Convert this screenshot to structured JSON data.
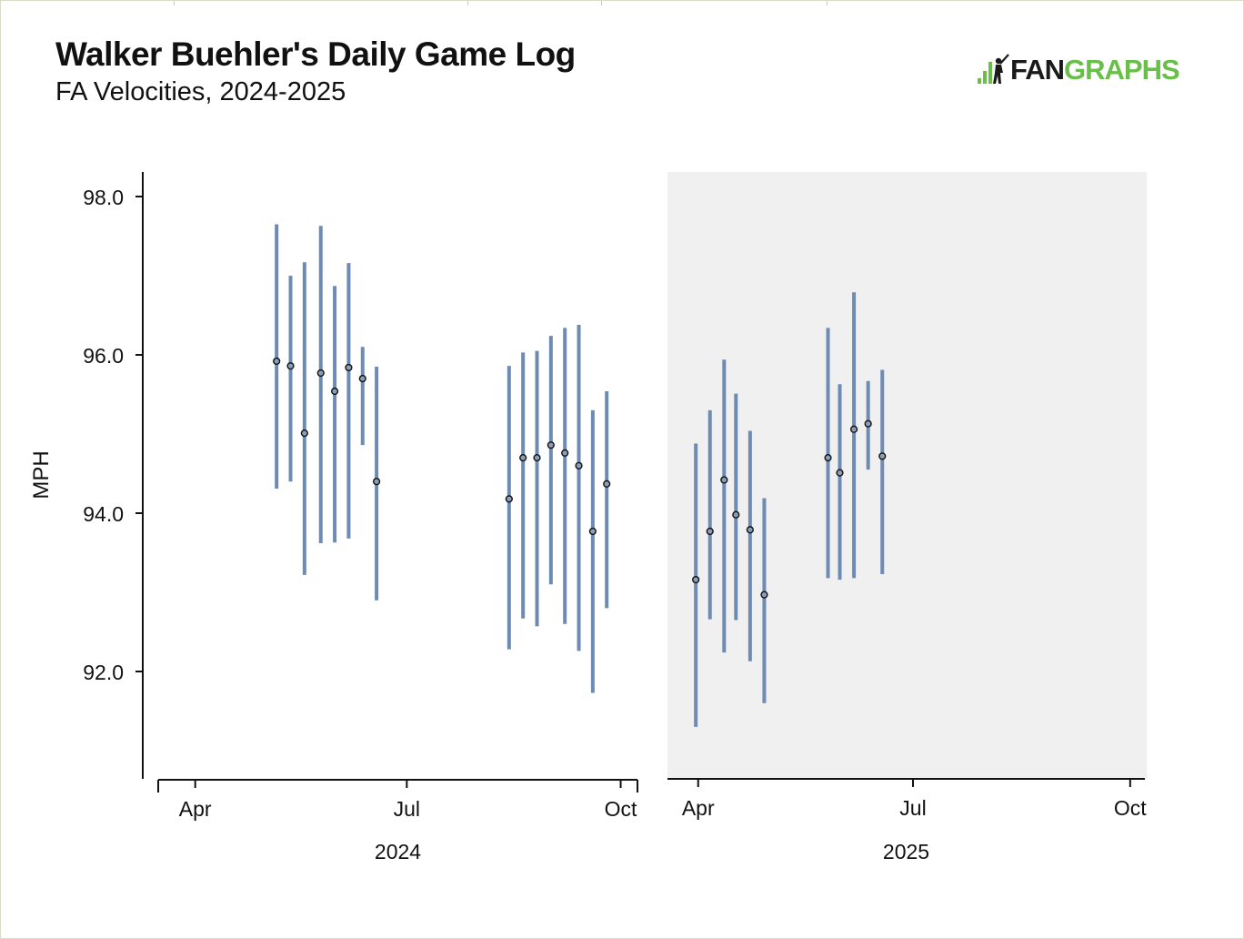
{
  "header": {
    "title": "Walker Buehler's Daily Game Log",
    "subtitle": "FA Velocities, 2024-2025"
  },
  "logo": {
    "text_dark": "FAN",
    "text_green": "GRAPHS",
    "icon": "fangraphs-batter-icon",
    "colors": {
      "dark": "#1a1a1a",
      "green": "#6abf4b"
    }
  },
  "chart_data": {
    "type": "scatter",
    "title": "Walker Buehler's Daily Game Log",
    "subtitle": "FA Velocities, 2024-2025",
    "ylabel": "MPH",
    "ylim": [
      90.8,
      98.3
    ],
    "yticks": [
      98.0,
      96.0,
      94.0,
      92.0
    ],
    "ytick_labels": [
      "98.0",
      "96.0",
      "94.0",
      "92.0"
    ],
    "grid": false,
    "colors": {
      "range_bar": "#6e8bb3",
      "point_fill": "#8a9eb8",
      "point_stroke": "#111111",
      "shaded_panel": "#f0f0f0"
    },
    "panels": [
      {
        "xlabel": "2024",
        "shaded": false,
        "xlim": [
          "2024-03-11",
          "2024-10-09"
        ],
        "x_ticks": [
          "2024-04-01",
          "2024-07-01",
          "2024-10-01"
        ],
        "x_tick_labels": [
          "Apr",
          "Jul",
          "Oct"
        ],
        "series": [
          {
            "x": [
              "2024-05-06",
              "2024-05-12",
              "2024-05-18",
              "2024-05-25",
              "2024-05-31",
              "2024-06-06",
              "2024-06-12",
              "2024-06-18",
              "2024-08-14",
              "2024-08-20",
              "2024-08-26",
              "2024-09-01",
              "2024-09-07",
              "2024-09-13",
              "2024-09-19",
              "2024-09-25"
            ],
            "avg": [
              95.92,
              95.86,
              95.01,
              95.77,
              95.54,
              95.84,
              95.7,
              94.4,
              94.18,
              94.7,
              94.7,
              94.86,
              94.76,
              94.6,
              93.77,
              94.37
            ],
            "min": [
              94.31,
              94.4,
              93.22,
              93.62,
              93.63,
              93.68,
              94.86,
              92.9,
              92.28,
              92.67,
              92.57,
              93.1,
              92.6,
              92.26,
              91.73,
              92.8
            ],
            "max": [
              97.65,
              97.0,
              97.17,
              97.63,
              96.87,
              97.16,
              96.1,
              95.85,
              95.86,
              96.03,
              96.05,
              96.24,
              96.34,
              96.38,
              95.3,
              95.54
            ]
          }
        ]
      },
      {
        "xlabel": "2025",
        "shaded": true,
        "xlim": [
          "2025-03-19",
          "2025-10-08"
        ],
        "x_ticks": [
          "2025-04-01",
          "2025-07-01",
          "2025-10-01"
        ],
        "x_tick_labels": [
          "Apr",
          "Jul",
          "Oct"
        ],
        "series": [
          {
            "x": [
              "2025-03-31",
              "2025-04-06",
              "2025-04-12",
              "2025-04-17",
              "2025-04-23",
              "2025-04-29",
              "2025-05-26",
              "2025-05-31",
              "2025-06-06",
              "2025-06-12",
              "2025-06-18"
            ],
            "avg": [
              93.16,
              93.77,
              94.42,
              93.98,
              93.79,
              92.97,
              94.7,
              94.51,
              95.06,
              95.13,
              94.72
            ],
            "min": [
              91.3,
              92.66,
              92.24,
              92.65,
              92.13,
              91.6,
              93.18,
              93.16,
              93.18,
              94.55,
              93.23
            ],
            "max": [
              94.88,
              95.3,
              95.94,
              95.51,
              95.04,
              94.19,
              96.34,
              95.63,
              96.79,
              95.67,
              95.81
            ]
          }
        ]
      }
    ]
  }
}
